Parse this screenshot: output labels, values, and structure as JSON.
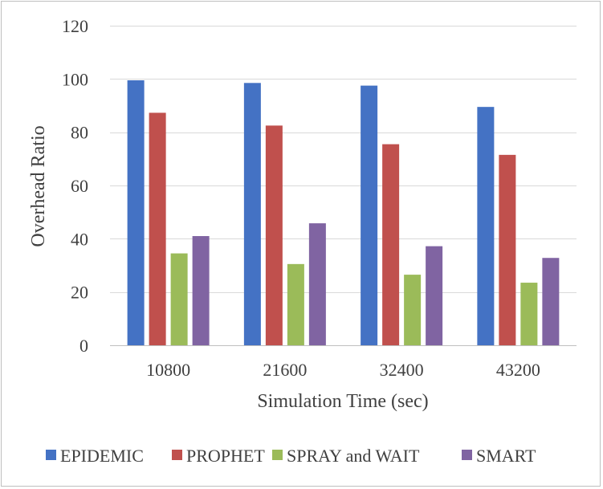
{
  "chart_data": {
    "type": "bar",
    "title": "",
    "xlabel": "Simulation Time (sec)",
    "ylabel": "Overhead Ratio",
    "categories": [
      "10800",
      "21600",
      "32400",
      "43200"
    ],
    "ylim": [
      0,
      120
    ],
    "yticks": [
      0,
      20,
      40,
      60,
      80,
      100,
      120
    ],
    "grid": true,
    "legend_position": "bottom",
    "series": [
      {
        "name": "EPIDEMIC",
        "color": "#4472c4",
        "values": [
          99.5,
          98.5,
          97.5,
          89.5
        ]
      },
      {
        "name": "PROPHET",
        "color": "#c0504d",
        "values": [
          87.3,
          82.5,
          75.5,
          71.5
        ]
      },
      {
        "name": "SPRAY and WAIT",
        "color": "#9bbb59",
        "values": [
          34.5,
          30.5,
          26.5,
          23.5
        ]
      },
      {
        "name": "SMART",
        "color": "#8064a2",
        "values": [
          41.0,
          45.8,
          37.2,
          32.8
        ]
      }
    ]
  }
}
